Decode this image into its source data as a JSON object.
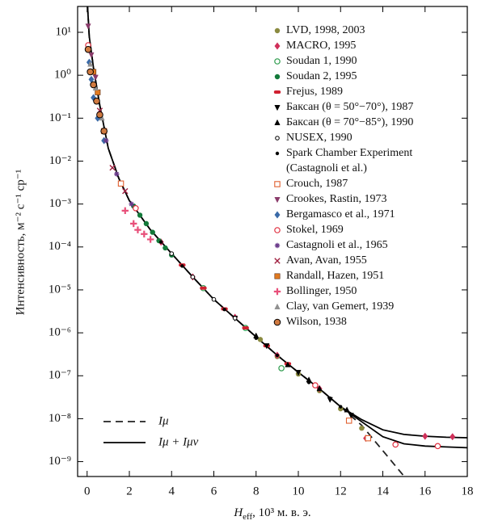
{
  "chart_data": {
    "type": "scatter",
    "yscale": "log",
    "x_label": {
      "main": "H",
      "sub": "eff",
      "rest": ", 10³ м. в. э."
    },
    "y_label": "Интенсивность, м⁻² с⁻¹ ср⁻¹",
    "xlim": [
      -0.45,
      18
    ],
    "ylim": [
      4.5e-10,
      40
    ],
    "xticks": [
      0,
      2,
      4,
      6,
      8,
      10,
      12,
      14,
      16,
      18
    ],
    "yticks": [
      {
        "value": 10,
        "label": "10¹"
      },
      {
        "value": 1,
        "label": "10⁰"
      },
      {
        "value": 0.1,
        "label": "10⁻¹"
      },
      {
        "value": 0.01,
        "label": "10⁻²"
      },
      {
        "value": 0.001,
        "label": "10⁻³"
      },
      {
        "value": 0.0001,
        "label": "10⁻⁴"
      },
      {
        "value": 1e-05,
        "label": "10⁻⁵"
      },
      {
        "value": 1e-06,
        "label": "10⁻⁶"
      },
      {
        "value": 1e-07,
        "label": "10⁻⁷"
      },
      {
        "value": 1e-08,
        "label": "10⁻⁸"
      },
      {
        "value": 1e-09,
        "label": "10⁻⁹"
      }
    ],
    "legend": "upper right",
    "curves": [
      {
        "name": "Iμ",
        "style": "dashed",
        "color": "#222222",
        "x": [
          0.02,
          0.1,
          0.3,
          0.6,
          1,
          1.5,
          2,
          3,
          4,
          5,
          6,
          7,
          8,
          9,
          10,
          11,
          12,
          13,
          14,
          15
        ],
        "values": [
          40,
          8,
          1.5,
          0.2,
          0.02,
          0.004,
          0.0012,
          0.00025,
          7e-05,
          2e-05,
          6e-06,
          2.2e-06,
          8e-07,
          3e-07,
          1.2e-07,
          5e-08,
          1.9e-08,
          7e-09,
          1.8e-09,
          4.6e-10
        ]
      },
      {
        "name": "Iμ + Iμν",
        "style": "solid",
        "color": "#000000",
        "x": [
          0.02,
          0.1,
          0.3,
          0.6,
          1,
          1.5,
          2,
          3,
          4,
          5,
          6,
          7,
          8,
          9,
          10,
          11,
          12,
          13,
          14,
          15,
          16,
          17,
          18
        ],
        "values": [
          40,
          8,
          1.5,
          0.2,
          0.02,
          0.004,
          0.0012,
          0.00025,
          7e-05,
          2e-05,
          6e-06,
          2.2e-06,
          8e-07,
          3e-07,
          1.2e-07,
          5e-08,
          1.9e-08,
          9.5e-09,
          5.5e-09,
          4.3e-09,
          3.9e-09,
          3.7e-09,
          3.6e-09
        ]
      },
      {
        "style": "solid",
        "color": "#000000",
        "x": [
          12,
          13,
          14,
          15,
          16,
          17,
          18
        ],
        "values": [
          1.9e-08,
          8.5e-09,
          3.8e-09,
          2.6e-09,
          2.3e-09,
          2.2e-09,
          2.1e-09
        ]
      }
    ],
    "series": [
      {
        "name": "LVD, 1998, 2003",
        "marker": "circle",
        "color": "#8a8a40",
        "x": [
          8.2,
          9,
          10,
          11,
          12,
          13
        ],
        "values": [
          7e-07,
          2.8e-07,
          1.1e-07,
          4.5e-08,
          1.7e-08,
          6e-09
        ]
      },
      {
        "name": "MACRO, 1995",
        "marker": "diamond",
        "color": "#d0305a",
        "x": [
          3.5,
          5,
          7,
          9,
          11,
          13.2,
          16,
          17.3
        ],
        "values": [
          0.00013,
          2e-05,
          2.3e-06,
          3e-07,
          5e-08,
          3.5e-09,
          3.9e-09,
          3.8e-09
        ]
      },
      {
        "name": "Soudan 1, 1990",
        "marker": "open-circle",
        "color": "#2a9a4a",
        "x": [
          5.5,
          7.5,
          9.2
        ],
        "values": [
          1.1e-05,
          1.3e-06,
          1.5e-07
        ]
      },
      {
        "name": "Soudan 2, 1995",
        "marker": "circle",
        "color": "#137a3a",
        "x": [
          2.2,
          2.5,
          2.8,
          3.1,
          3.4,
          3.7,
          4.0
        ],
        "values": [
          0.0009,
          0.00055,
          0.00035,
          0.00022,
          0.00014,
          9.5e-05,
          6.5e-05
        ]
      },
      {
        "name": "Frejus, 1989",
        "marker": "pill",
        "color": "#d02030",
        "x": [
          4.5,
          5.5,
          6.5,
          7.5,
          8.5,
          9.5
        ],
        "values": [
          3.8e-05,
          1.1e-05,
          3.6e-06,
          1.3e-06,
          5e-07,
          1.9e-07
        ]
      },
      {
        "name": "Баксан (θ = 50°−70°), 1987",
        "marker": "tri-down",
        "color": "#000000",
        "x": [
          7,
          8.5,
          10,
          11.5,
          12.5
        ],
        "values": [
          2.2e-06,
          5e-07,
          1.2e-07,
          2.8e-08,
          1.2e-08
        ]
      },
      {
        "name": "Баксан (θ = 70°−85°), 1990",
        "marker": "tri-up",
        "color": "#000000",
        "x": [
          8,
          9.5,
          10.5,
          11,
          12.3
        ],
        "values": [
          8.5e-07,
          1.8e-07,
          8e-08,
          5e-08,
          1.6e-08
        ]
      },
      {
        "name": "NUSEX, 1990",
        "marker": "open-circle-small",
        "color": "#000000",
        "x": [
          4,
          5,
          6,
          7
        ],
        "values": [
          7e-05,
          2e-05,
          6e-06,
          2.2e-06
        ]
      },
      {
        "name": "Spark Chamber Experiment\n(Castagnoli et al.)",
        "marker": "dot",
        "color": "#000000",
        "x": [
          3.5,
          4.5,
          6.5,
          8,
          9,
          10.5,
          11.5,
          12
        ],
        "values": [
          0.00013,
          3.6e-05,
          3.5e-06,
          7.5e-07,
          3e-07,
          7e-08,
          3e-08,
          1.9e-08
        ]
      },
      {
        "name": "Crouch, 1987",
        "marker": "open-square",
        "color": "#e06030",
        "x": [
          0.8,
          1.6,
          12.4,
          13.3
        ],
        "values": [
          0.05,
          0.003,
          9e-09,
          3.5e-09
        ]
      },
      {
        "name": "Crookes, Rastin, 1973",
        "marker": "tri-down",
        "color": "#8a3a6a",
        "x": [
          0.05,
          0.2,
          0.4
        ],
        "values": [
          14,
          3,
          0.9
        ]
      },
      {
        "name": "Bergamasco et al., 1971",
        "marker": "diamond",
        "color": "#3a6aa8",
        "x": [
          0.1,
          0.2,
          0.3,
          0.5,
          0.8
        ],
        "values": [
          2,
          0.8,
          0.3,
          0.1,
          0.03
        ]
      },
      {
        "name": "Stokel, 1969",
        "marker": "open-circle",
        "color": "#e03040",
        "x": [
          0.05,
          2.3,
          10.8,
          14.6,
          16.6
        ],
        "values": [
          5,
          0.0008,
          6e-08,
          2.5e-09,
          2.3e-09
        ]
      },
      {
        "name": "Castagnoli et al., 1965",
        "marker": "star",
        "color": "#6a3a8a",
        "x": [
          0.9,
          1.4,
          2.1
        ],
        "values": [
          0.03,
          0.005,
          0.001
        ]
      },
      {
        "name": "Avan, Avan, 1955",
        "marker": "cross",
        "color": "#a02040",
        "x": [
          0.6,
          1.2,
          1.8
        ],
        "values": [
          0.15,
          0.007,
          0.002
        ]
      },
      {
        "name": "Randall, Hazen, 1951",
        "marker": "square",
        "color": "#e07a20",
        "x": [
          0.3,
          0.5
        ],
        "values": [
          1.2,
          0.4
        ]
      },
      {
        "name": "Bollinger, 1950",
        "marker": "plus",
        "color": "#e8507a",
        "x": [
          1.8,
          2.2,
          2.4,
          2.7,
          3.0
        ],
        "values": [
          0.0007,
          0.00035,
          0.00025,
          0.0002,
          0.00015
        ]
      },
      {
        "name": "Clay, van Gemert, 1939",
        "marker": "tri-up",
        "color": "#909090",
        "x": [
          0.15,
          0.4,
          0.7
        ],
        "values": [
          1.8,
          0.5,
          0.1
        ]
      },
      {
        "name": "Wilson, 1938",
        "marker": "circle-edge",
        "color": "#d07a40",
        "x": [
          0.05,
          0.15,
          0.3,
          0.45,
          0.6,
          0.8
        ],
        "values": [
          4,
          1.2,
          0.6,
          0.25,
          0.12,
          0.05
        ]
      }
    ]
  }
}
